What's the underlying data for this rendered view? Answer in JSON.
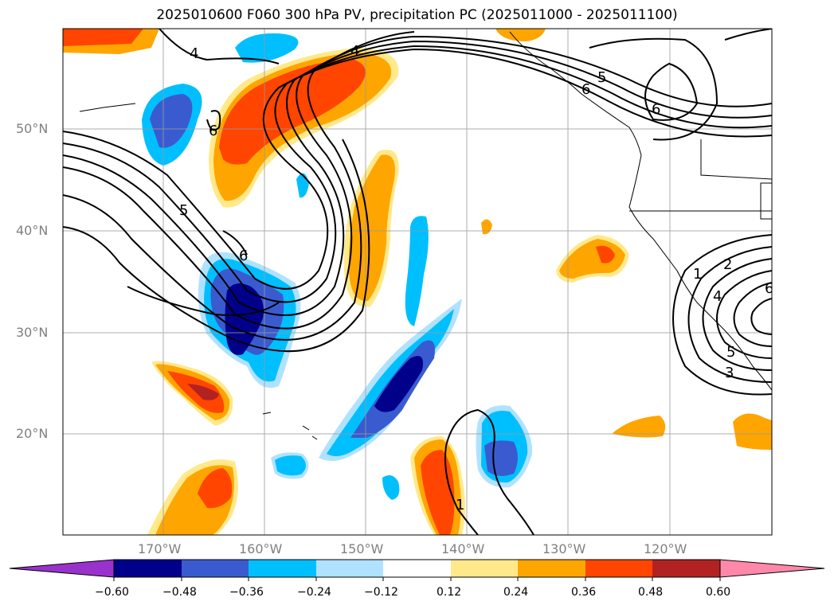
{
  "title": "2025010600 F060 300 hPa PV, precipitation PC (2025011000 - 2025011100)",
  "map": {
    "lat_labels": [
      "50°N",
      "40°N",
      "30°N",
      "20°N"
    ],
    "lon_labels": [
      "170°W",
      "160°W",
      "150°W",
      "140°W",
      "130°W",
      "120°W"
    ],
    "contour_labels": [
      "4",
      "4",
      "5",
      "6",
      "6",
      "6",
      "5",
      "6",
      "1",
      "2",
      "4",
      "6",
      "5",
      "3",
      "1"
    ]
  },
  "colorbar": {
    "colors": [
      "#9932cc",
      "#00008b",
      "#3a5bd0",
      "#00bfff",
      "#b0e2ff",
      "#ffffff",
      "#ffe98a",
      "#ffa500",
      "#ff4500",
      "#b22222",
      "#ff88aa"
    ],
    "tick_labels": [
      "−0.60",
      "−0.48",
      "−0.36",
      "−0.24",
      "−0.12",
      "0.12",
      "0.24",
      "0.36",
      "0.48",
      "0.60"
    ]
  }
}
